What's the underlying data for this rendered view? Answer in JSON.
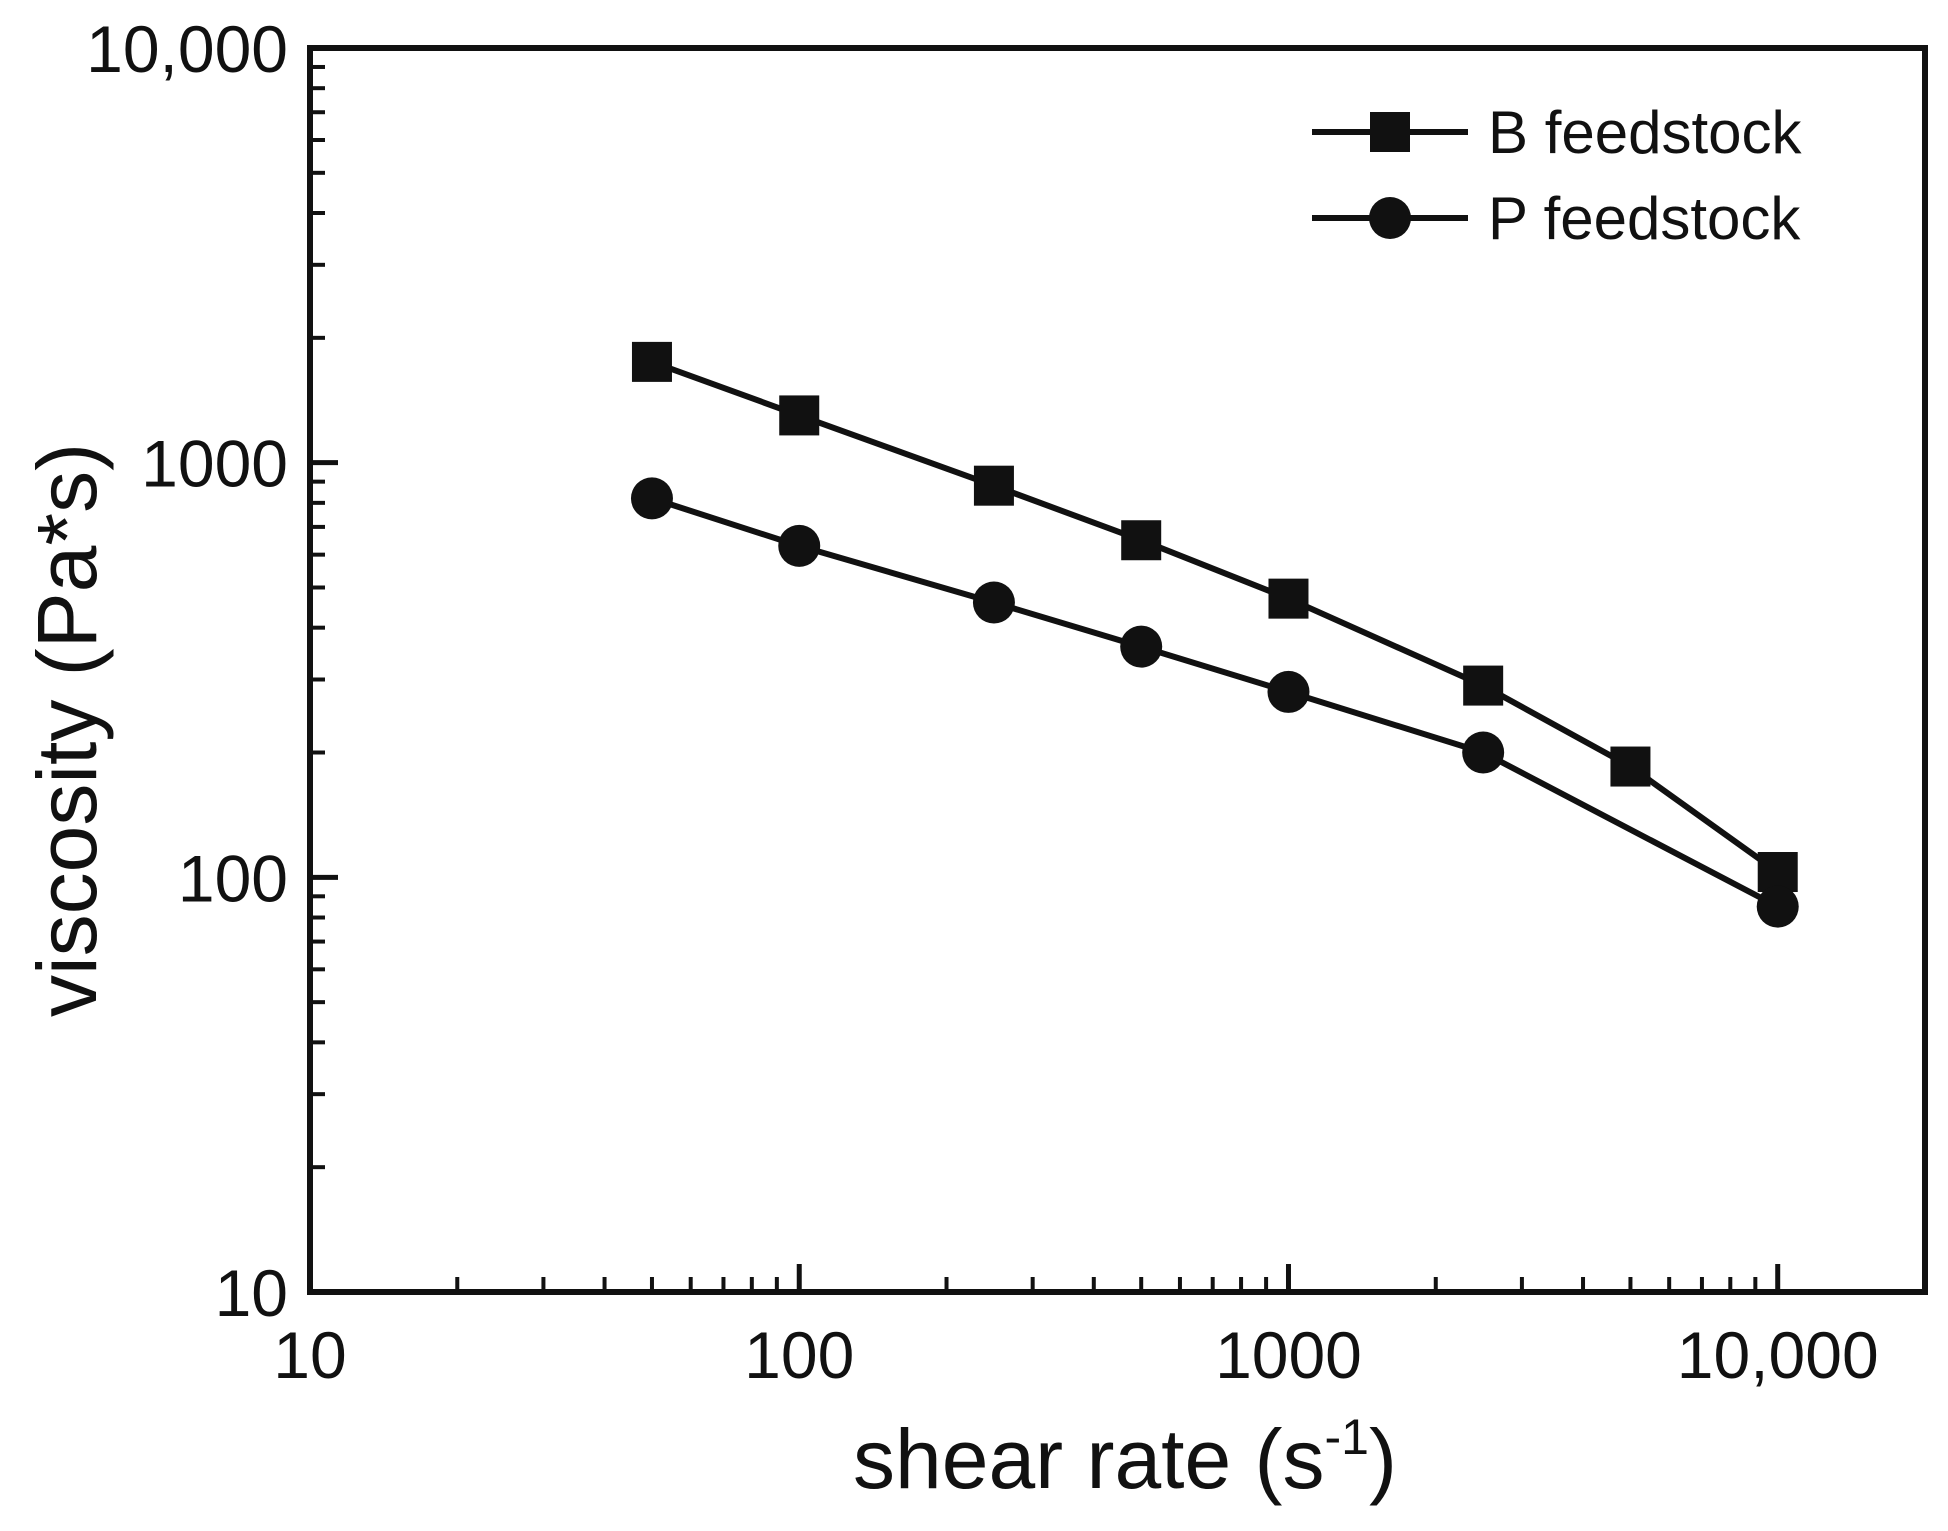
{
  "chart_data": {
    "type": "line",
    "title": "",
    "xlabel": "shear rate (s",
    "xlabel_sup": "-1",
    "xlabel_close": ")",
    "ylabel": "viscosity (Pa*s)",
    "xscale": "log",
    "yscale": "log",
    "xlim": [
      10,
      20000
    ],
    "ylim": [
      10,
      10000
    ],
    "x_ticks": [
      10,
      100,
      1000,
      10000
    ],
    "x_tick_labels": [
      "10",
      "100",
      "1000",
      "10,000"
    ],
    "y_ticks": [
      10,
      100,
      1000,
      10000
    ],
    "y_tick_labels": [
      "10",
      "100",
      "1000",
      "10,000"
    ],
    "grid": false,
    "legend_position": "top-right",
    "series": [
      {
        "name": "B feedstock",
        "marker": "square",
        "x": [
          50,
          100,
          250,
          500,
          1000,
          2500,
          5000,
          10000
        ],
        "y": [
          1750,
          1300,
          880,
          650,
          470,
          290,
          185,
          103
        ]
      },
      {
        "name": "P feedstock",
        "marker": "circle",
        "x": [
          50,
          100,
          250,
          500,
          1000,
          2500,
          10000
        ],
        "y": [
          820,
          630,
          460,
          360,
          280,
          200,
          85
        ]
      }
    ]
  }
}
